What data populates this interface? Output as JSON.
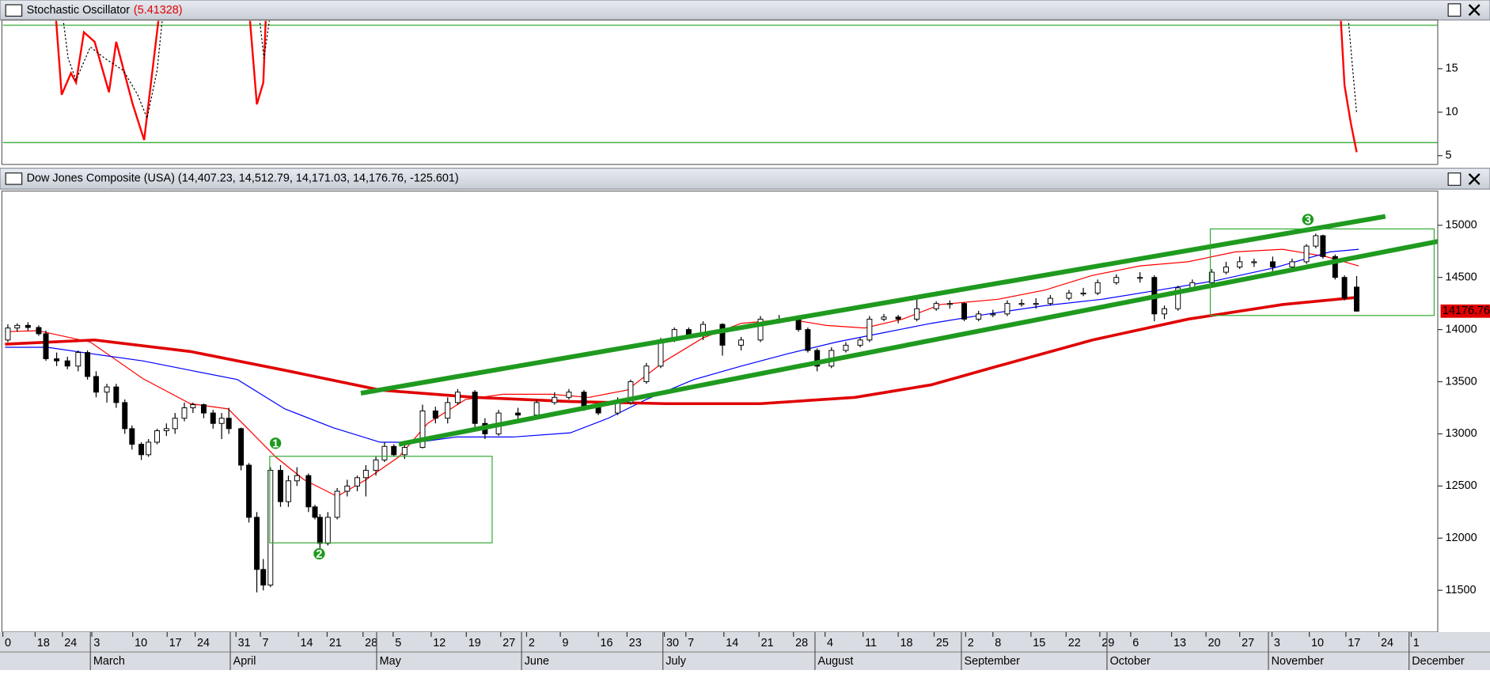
{
  "chart_data": [
    {
      "type": "line",
      "title": "Stochastic Oscillator",
      "subtitle": "(5.41328)",
      "xlim": [
        0,
        200
      ],
      "ylim": [
        4.1,
        20.5
      ],
      "yticks": [
        5,
        10,
        15
      ],
      "levels": [
        {
          "value": 20,
          "color": "#22a022"
        },
        {
          "value": 6.5,
          "color": "#22a022"
        }
      ],
      "series": [
        {
          "color": "#ff0000",
          "style": "solid",
          "x": [
            7.3,
            8.2,
            9.5,
            10.2,
            11.3,
            12.8,
            14.8,
            15.8,
            18.1,
            19.7,
            21.9,
            28,
            34.3,
            35.4,
            36.3,
            36.7,
            100,
            186.4,
            187,
            187.9,
            188.7
          ],
          "values": [
            22,
            12.0,
            14.5,
            13.4,
            19.2,
            18.1,
            12.3,
            18.1,
            10.9,
            6.8,
            22,
            null,
            22,
            10.9,
            13.4,
            22,
            null,
            22,
            13.1,
            8.7,
            5.4
          ]
        },
        {
          "color": "#000000",
          "style": "dotted",
          "x": [
            8.2,
            9.1,
            10.2,
            12.2,
            14.2,
            16.8,
            18.8,
            20.1,
            21.5,
            22.4,
            28,
            35.6,
            36.4,
            37.4,
            100,
            187.4,
            188.1,
            188.7
          ],
          "values": [
            22,
            16.2,
            13.7,
            17.5,
            16.2,
            14.8,
            12.0,
            9.3,
            14.8,
            22,
            null,
            22,
            16.2,
            22,
            null,
            22,
            15.3,
            9.8
          ]
        }
      ]
    },
    {
      "type": "candlestick",
      "title": "Dow Jones Composite (USA) (14,407.23, 14,512.79, 14,171.03, 14,176.76, -125.601)",
      "xlim": [
        0,
        200
      ],
      "ylim": [
        11100,
        15310
      ],
      "yticks": [
        11500,
        12000,
        12500,
        13000,
        13500,
        14000,
        14500,
        15000
      ],
      "xticks": [
        {
          "value": 0,
          "label": "0"
        },
        {
          "value": 4.5,
          "label": "18"
        },
        {
          "value": 8.3,
          "label": "24"
        },
        {
          "value": 12.4,
          "label": "3"
        },
        {
          "value": 18.1,
          "label": "10"
        },
        {
          "value": 22.9,
          "label": "17"
        },
        {
          "value": 26.8,
          "label": "24"
        },
        {
          "value": 32.5,
          "label": "31"
        },
        {
          "value": 35.9,
          "label": "7"
        },
        {
          "value": 41.2,
          "label": "14"
        },
        {
          "value": 45.2,
          "label": "21"
        },
        {
          "value": 50.2,
          "label": "28"
        },
        {
          "value": 54.4,
          "label": "5"
        },
        {
          "value": 59.7,
          "label": "12"
        },
        {
          "value": 64.6,
          "label": "19"
        },
        {
          "value": 69.4,
          "label": "27"
        },
        {
          "value": 73,
          "label": "2"
        },
        {
          "value": 77.7,
          "label": "9"
        },
        {
          "value": 83,
          "label": "16"
        },
        {
          "value": 87,
          "label": "23"
        },
        {
          "value": 92.2,
          "label": "30"
        },
        {
          "value": 95.2,
          "label": "7"
        },
        {
          "value": 100.5,
          "label": "14"
        },
        {
          "value": 105.4,
          "label": "21"
        },
        {
          "value": 110.2,
          "label": "28"
        },
        {
          "value": 114.6,
          "label": "4"
        },
        {
          "value": 119.9,
          "label": "11"
        },
        {
          "value": 124.8,
          "label": "18"
        },
        {
          "value": 129.8,
          "label": "25"
        },
        {
          "value": 134.2,
          "label": "2"
        },
        {
          "value": 138,
          "label": "8"
        },
        {
          "value": 143.3,
          "label": "15"
        },
        {
          "value": 148.2,
          "label": "22"
        },
        {
          "value": 152.9,
          "label": "29"
        },
        {
          "value": 157.2,
          "label": "6"
        },
        {
          "value": 162.9,
          "label": "13"
        },
        {
          "value": 167.7,
          "label": "20"
        },
        {
          "value": 172.4,
          "label": "27"
        },
        {
          "value": 176.9,
          "label": "3"
        },
        {
          "value": 182.1,
          "label": "10"
        },
        {
          "value": 187.2,
          "label": "17"
        },
        {
          "value": 191.8,
          "label": "24"
        },
        {
          "value": 196.3,
          "label": "1"
        }
      ],
      "month_ticks": [
        {
          "value": 12.2,
          "label": "March"
        },
        {
          "value": 31.7,
          "label": "April"
        },
        {
          "value": 52.1,
          "label": "May"
        },
        {
          "value": 72.3,
          "label": "June"
        },
        {
          "value": 92,
          "label": "July"
        },
        {
          "value": 113.2,
          "label": "August"
        },
        {
          "value": 133.6,
          "label": "September"
        },
        {
          "value": 153.9,
          "label": "October"
        },
        {
          "value": 176.4,
          "label": "November"
        },
        {
          "value": 196,
          "label": "December"
        }
      ],
      "x": [
        0.7,
        2,
        3.5,
        5,
        6,
        7.5,
        9,
        10.5,
        11.8,
        13,
        14.5,
        15.8,
        17,
        18,
        19.3,
        20.3,
        21.5,
        22.8,
        24,
        25.3,
        26.5,
        28,
        29.3,
        30.5,
        31.5,
        33.2,
        34.3,
        35.4,
        36.3,
        37.3,
        38.7,
        39.8,
        41,
        42.6,
        43.5,
        44.2,
        45.3,
        46.6,
        48,
        49.4,
        50.6,
        52,
        53.2,
        54.5,
        56,
        58.5,
        60.3,
        62,
        63.4,
        65.8,
        67.2,
        69.1,
        71.8,
        74.4,
        76.9,
        78.9,
        81,
        83,
        85.7,
        87.5,
        89.7,
        91.7,
        93.6,
        95.6,
        97.6,
        100.3,
        102.9,
        105.6,
        108.2,
        110.9,
        112.2,
        113.5,
        115.5,
        117.5,
        119.5,
        120.8,
        122.8,
        124.8,
        127.4,
        130.1,
        132,
        134,
        136,
        138,
        140,
        142,
        144,
        146,
        148.6,
        150.6,
        152.6,
        155.2,
        158.5,
        160.5,
        161.9,
        163.8,
        165.8,
        168.5,
        170.5,
        172.4,
        174.4,
        177,
        179.7,
        181.7,
        183,
        184,
        185.7,
        187,
        188.7
      ],
      "open": [
        13900,
        14015,
        14040,
        14020,
        13960,
        13720,
        13700,
        13650,
        13780,
        13550,
        13400,
        13450,
        13300,
        13050,
        12900,
        12800,
        12920,
        13030,
        13050,
        13150,
        13250,
        13280,
        13200,
        13100,
        13150,
        13050,
        12700,
        12200,
        11700,
        11550,
        12650,
        12350,
        12550,
        12600,
        12300,
        12200,
        11950,
        12200,
        12450,
        12500,
        12580,
        12650,
        12750,
        12880,
        12800,
        12870,
        13220,
        13150,
        13300,
        13400,
        13100,
        13000,
        13200,
        13180,
        13300,
        13350,
        13400,
        13250,
        13200,
        13300,
        13500,
        13650,
        13900,
        14000,
        13950,
        14050,
        13850,
        13900,
        14100,
        14100,
        14000,
        13800,
        13650,
        13800,
        13850,
        13900,
        14100,
        14120,
        14100,
        14200,
        14250,
        14250,
        14100,
        14150,
        14150,
        14250,
        14250,
        14250,
        14300,
        14350,
        14350,
        14450,
        14500,
        14500,
        14150,
        14200,
        14400,
        14450,
        14550,
        14600,
        14650,
        14650,
        14600,
        14650,
        14800,
        14900,
        14700,
        14500,
        14407.23
      ],
      "high": [
        14050,
        14060,
        14070,
        14040,
        13990,
        13780,
        13740,
        13800,
        13800,
        13600,
        13480,
        13480,
        13330,
        13080,
        12920,
        12950,
        13050,
        13100,
        13200,
        13300,
        13300,
        13290,
        13230,
        13200,
        13250,
        13060,
        12720,
        12250,
        11800,
        12680,
        12700,
        12600,
        12680,
        12620,
        12320,
        12230,
        12250,
        12480,
        12560,
        12600,
        12700,
        12780,
        12920,
        12900,
        12900,
        13280,
        13260,
        13350,
        13430,
        13420,
        13150,
        13230,
        13250,
        13330,
        13400,
        13430,
        13420,
        13280,
        13350,
        13520,
        13680,
        13920,
        14020,
        14020,
        14080,
        14060,
        13930,
        14130,
        14140,
        14120,
        14020,
        13820,
        13830,
        13880,
        13920,
        14130,
        14150,
        14140,
        14300,
        14270,
        14280,
        14260,
        14180,
        14190,
        14280,
        14290,
        14300,
        14330,
        14380,
        14400,
        14480,
        14530,
        14550,
        14520,
        14230,
        14420,
        14480,
        14580,
        14650,
        14700,
        14680,
        14700,
        14680,
        14820,
        14920,
        14910,
        14720,
        14520,
        14512.79
      ],
      "low": [
        13880,
        13980,
        13990,
        13940,
        13700,
        13650,
        13620,
        13600,
        13520,
        13350,
        13300,
        13250,
        13000,
        12850,
        12750,
        12780,
        12900,
        12980,
        13000,
        13120,
        13200,
        13150,
        13050,
        12950,
        13000,
        12650,
        12150,
        11480,
        11500,
        11530,
        12300,
        12300,
        12500,
        12250,
        12180,
        11900,
        11930,
        12180,
        12400,
        12450,
        12400,
        12600,
        12730,
        12780,
        12760,
        12860,
        13100,
        13100,
        13280,
        13050,
        12950,
        12980,
        13120,
        13150,
        13280,
        13330,
        13220,
        13180,
        13180,
        13280,
        13480,
        13630,
        13880,
        13930,
        13900,
        13750,
        13800,
        13880,
        14060,
        13980,
        13780,
        13600,
        13630,
        13780,
        13830,
        13880,
        14080,
        14060,
        14080,
        14180,
        14200,
        14080,
        14080,
        14120,
        14130,
        14220,
        14200,
        14230,
        14280,
        14320,
        14330,
        14430,
        14450,
        14080,
        14100,
        14180,
        14380,
        14430,
        14530,
        14580,
        14600,
        14560,
        14580,
        14630,
        14780,
        14680,
        14480,
        14280,
        14171.03
      ],
      "close": [
        14015,
        14040,
        14020,
        13960,
        13720,
        13700,
        13650,
        13780,
        13550,
        13400,
        13450,
        13300,
        13050,
        12900,
        12800,
        12920,
        13030,
        13050,
        13150,
        13250,
        13280,
        13200,
        13100,
        13150,
        13050,
        12700,
        12200,
        11700,
        11550,
        12650,
        12350,
        12550,
        12600,
        12300,
        12200,
        11950,
        12200,
        12450,
        12500,
        12580,
        12650,
        12750,
        12880,
        12800,
        12870,
        13220,
        13150,
        13300,
        13400,
        13100,
        13000,
        13200,
        13180,
        13300,
        13350,
        13400,
        13250,
        13200,
        13300,
        13500,
        13650,
        13900,
        14000,
        13950,
        14050,
        13850,
        13900,
        14100,
        14100,
        14000,
        13800,
        13650,
        13800,
        13850,
        13900,
        14100,
        14120,
        14100,
        14200,
        14250,
        14250,
        14100,
        14150,
        14150,
        14250,
        14250,
        14250,
        14300,
        14350,
        14350,
        14450,
        14500,
        14500,
        14150,
        14200,
        14400,
        14450,
        14550,
        14600,
        14650,
        14650,
        14600,
        14650,
        14800,
        14900,
        14700,
        14500,
        14300,
        14176.76
      ],
      "series": [
        {
          "color": "#ff0000",
          "width": 1,
          "x": [
            0.3,
            4.9,
            12.2,
            19.5,
            26.1,
            31.4,
            34,
            38,
            42,
            46.6,
            50.6,
            55.2,
            59.2,
            64.5,
            69.8,
            76.4,
            81.7,
            87,
            92.3,
            97.6,
            102.9,
            109.5,
            114.8,
            120.1,
            125.4,
            130.7,
            138.7,
            145.3,
            151.9,
            158.5,
            165.2,
            171.8,
            178.4,
            184.4,
            189
          ],
          "values": [
            13980,
            13990,
            13880,
            13530,
            13290,
            13240,
            13060,
            12780,
            12560,
            12400,
            12560,
            12780,
            13100,
            13330,
            13380,
            13380,
            13350,
            13420,
            13700,
            13920,
            14060,
            14100,
            14040,
            14015,
            14100,
            14240,
            14290,
            14380,
            14520,
            14610,
            14650,
            14745,
            14770,
            14700,
            14610
          ]
        },
        {
          "color": "#0000ff",
          "width": 1,
          "x": [
            0.3,
            6.2,
            12.2,
            19.5,
            26.1,
            32.7,
            39.3,
            46,
            52.6,
            57.9,
            63.2,
            71.1,
            79.1,
            84.4,
            89.7,
            96.3,
            102.9,
            109.5,
            116.2,
            122.8,
            129.4,
            137.4,
            145.3,
            153.2,
            161.2,
            169.1,
            177.1,
            185,
            189
          ],
          "values": [
            13830,
            13830,
            13770,
            13700,
            13610,
            13520,
            13240,
            13060,
            12920,
            12920,
            12970,
            12970,
            13010,
            13150,
            13330,
            13520,
            13650,
            13770,
            13880,
            13970,
            14060,
            14150,
            14230,
            14290,
            14380,
            14470,
            14590,
            14745,
            14770
          ]
        },
        {
          "color": "#e00000",
          "width": 3,
          "x": [
            0.3,
            12.8,
            26.1,
            39.3,
            52.6,
            65.8,
            79.1,
            92.3,
            105.6,
            118.8,
            129.4,
            138.7,
            151.9,
            165.2,
            178.4,
            189
          ],
          "values": [
            13860,
            13900,
            13790,
            13610,
            13420,
            13350,
            13310,
            13290,
            13290,
            13350,
            13470,
            13650,
            13900,
            14100,
            14240,
            14310
          ]
        }
      ],
      "trendlines": [
        {
          "color": "#1f9a1f",
          "x": [
            49.9,
            192.7
          ],
          "y": [
            13390,
            15085
          ]
        },
        {
          "color": "#1f9a1f",
          "x": [
            55.2,
            200
          ],
          "y": [
            12900,
            14845
          ]
        }
      ],
      "boxes": [
        {
          "color": "#33aa33",
          "x": [
            37.2,
            68.2
          ],
          "y": [
            11955,
            12785
          ]
        },
        {
          "color": "#33aa33",
          "x": [
            168.3,
            199.5
          ],
          "y": [
            14135,
            14965
          ]
        }
      ],
      "markers": [
        {
          "color": "#1f9a1f",
          "label": 1,
          "x": 38,
          "y": 12910
        },
        {
          "color": "#1f9a1f",
          "label": 2,
          "x": 44.1,
          "y": 11850
        },
        {
          "color": "#1f9a1f",
          "label": 3,
          "x": 181.9,
          "y": 15055
        }
      ]
    }
  ]
}
